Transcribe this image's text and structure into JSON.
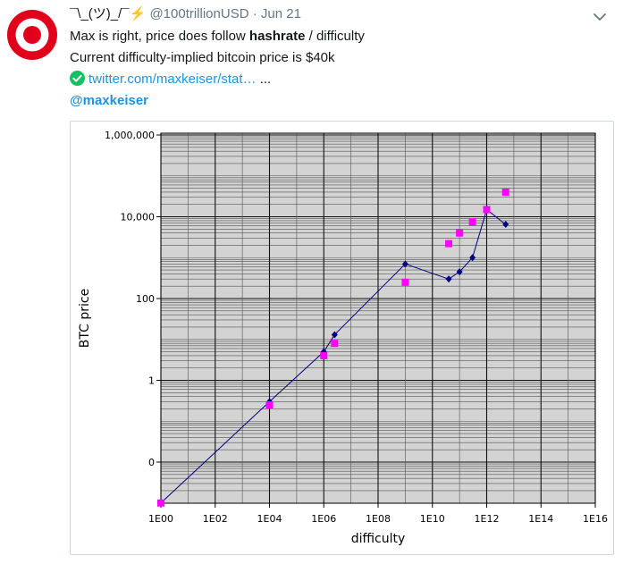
{
  "tweet": {
    "display_name": "¯\\_(ツ)_/¯",
    "bolt": "⚡",
    "handle": "@100trillionUSD",
    "separator": "·",
    "date": "Jun 21",
    "line1_pre": "Max is right, price does follow ",
    "line1_bold": "hashrate",
    "line1_post": " / difficulty",
    "line2": "Current difficulty-implied bitcoin price is $40k",
    "link_text": "twitter.com/maxkeiser/stat…",
    "link_ellipsis": " ...",
    "mention": "@maxkeiser",
    "icons": {
      "avatar": "target-logo-icon",
      "menu": "chevron-down-icon",
      "check": "check-circle-icon"
    },
    "colors": {
      "link": "#1b95e0",
      "avatar": "#e0001b",
      "check": "#17bf63"
    }
  },
  "chart_data": {
    "type": "scatter",
    "xlabel": "difficulty",
    "ylabel": "BTC price",
    "x_scale": "log",
    "y_scale": "log",
    "xlim": [
      1,
      10000000000000000
    ],
    "x_ticks": [
      "1E00",
      "1E02",
      "1E04",
      "1E06",
      "1E08",
      "1E10",
      "1E12",
      "1E14",
      "1E16"
    ],
    "y_ticks": [
      {
        "label": "1,000,000",
        "v": 1000000
      },
      {
        "label": "10,000",
        "v": 10000
      },
      {
        "label": "100",
        "v": 100
      },
      {
        "label": "1",
        "v": 1
      },
      {
        "label": "0",
        "v": 0.01
      }
    ],
    "grid": true,
    "series": [
      {
        "style": "line-diamond",
        "color": "#000080",
        "points": [
          [
            1,
            0.001
          ],
          [
            10000,
            0.3
          ],
          [
            1000000,
            5
          ],
          [
            2500000,
            13
          ],
          [
            1000000000,
            700
          ],
          [
            40000000000,
            300
          ],
          [
            100000000000,
            450
          ],
          [
            300000000000,
            1000
          ],
          [
            1000000000000,
            15000
          ],
          [
            5000000000000,
            6500
          ]
        ]
      },
      {
        "style": "square",
        "color": "#ff00ff",
        "points": [
          [
            1,
            0.001
          ],
          [
            10000,
            0.25
          ],
          [
            1000000,
            4
          ],
          [
            2500000,
            8
          ],
          [
            1000000000,
            250
          ],
          [
            40000000000,
            2200
          ],
          [
            100000000000,
            4000
          ],
          [
            300000000000,
            7500
          ],
          [
            1000000000000,
            15000
          ],
          [
            5000000000000,
            40000
          ]
        ]
      }
    ]
  }
}
